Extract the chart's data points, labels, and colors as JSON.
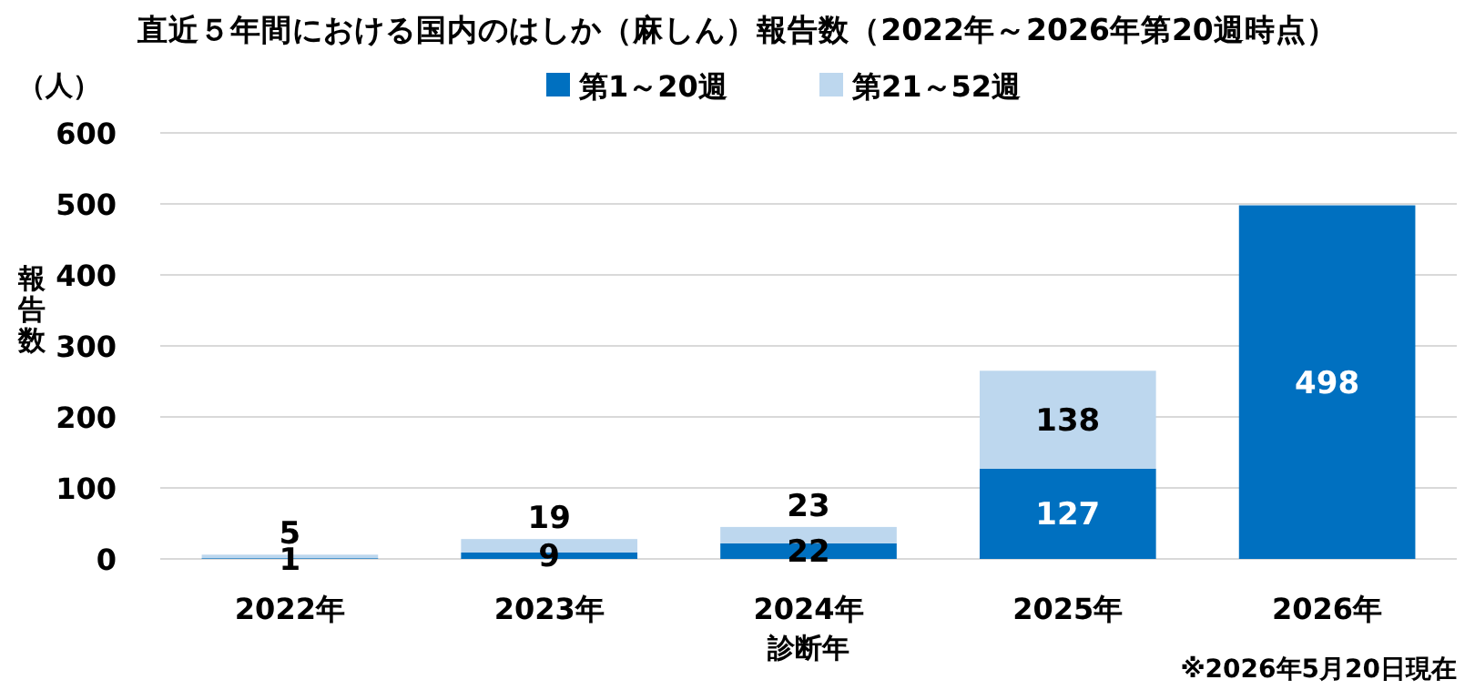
{
  "chart_data": {
    "type": "bar",
    "title": "直近５年間における国内のはしか（麻しん）報告数（2022年～2026年第20週時点）",
    "categories": [
      "2022年",
      "2023年",
      "2024年",
      "2025年",
      "2026年"
    ],
    "stacked": true,
    "series": [
      {
        "name": "第1～20週",
        "color": "#0070c0",
        "values": [
          1,
          9,
          22,
          127,
          498
        ]
      },
      {
        "name": "第21～52週",
        "color": "#bdd7ee",
        "values": [
          5,
          19,
          23,
          138,
          null
        ]
      }
    ],
    "ylim": [
      0,
      600
    ],
    "yticks": [
      0,
      100,
      200,
      300,
      400,
      500,
      600
    ],
    "grid": "y",
    "legend": "top",
    "data_labels": true,
    "xlabel": "診断年",
    "ylabel": "報告数",
    "annotations": [
      "（人）",
      "※2026年5月20日現在"
    ]
  }
}
